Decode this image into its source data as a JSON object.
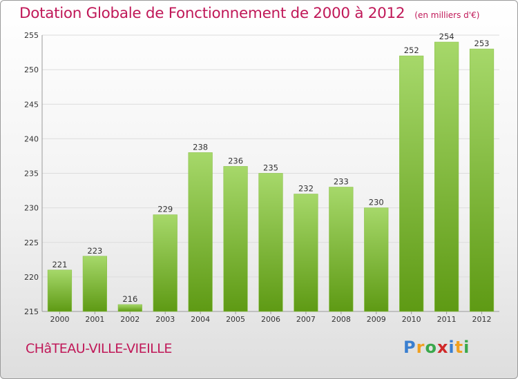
{
  "header": {
    "title": "Dotation Globale de Fonctionnement de 2000 à 2012",
    "unit": "(en milliers d'€)"
  },
  "footer": {
    "place": "CHâTEAU-VILLE-VIEILLE",
    "logo": "Proxiti"
  },
  "colors": {
    "title": "#c01858",
    "bar_light": "#a6d86a",
    "bar_dark": "#5e9a14",
    "grid": "#dcdcdc"
  },
  "chart_data": {
    "type": "bar",
    "title": "Dotation Globale de Fonctionnement de 2000 à 2012",
    "subtitle": "(en milliers d'€)",
    "xlabel": "",
    "ylabel": "",
    "categories": [
      "2000",
      "2001",
      "2002",
      "2003",
      "2004",
      "2005",
      "2006",
      "2007",
      "2008",
      "2009",
      "2010",
      "2011",
      "2012"
    ],
    "values": [
      221,
      223,
      216,
      229,
      238,
      236,
      235,
      232,
      233,
      230,
      252,
      254,
      253
    ],
    "ylim": [
      215,
      255
    ],
    "yticks": [
      215,
      220,
      225,
      230,
      235,
      240,
      245,
      250,
      255
    ],
    "grid": true,
    "data_labels": true
  }
}
